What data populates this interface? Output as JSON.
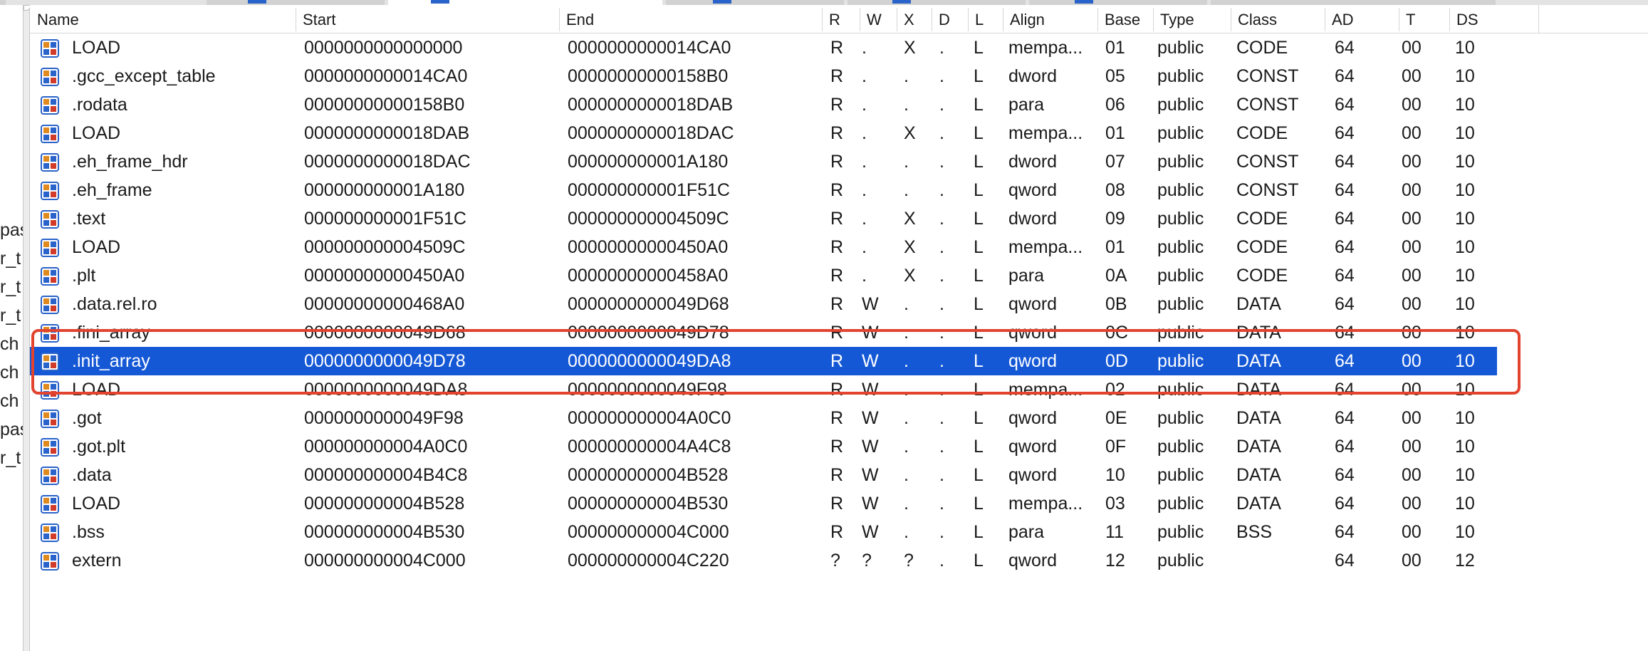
{
  "left_fragments": [
    "pas",
    "r_t",
    "r_t",
    "r_t",
    "ch",
    "ch",
    "ch",
    "pas",
    "r_t"
  ],
  "columns": [
    "Name",
    "Start",
    "End",
    "R",
    "W",
    "X",
    "D",
    "L",
    "Align",
    "Base",
    "Type",
    "Class",
    "AD",
    "T",
    "DS"
  ],
  "icon_name": "segment-icon",
  "colors": {
    "selection": "#1558d6",
    "annotation": "#e2432f",
    "icon_blue": "#2a63c9",
    "icon_orange": "#e08a1e",
    "icon_red": "#d23b2a"
  },
  "selected_row": 11,
  "annotated_rows": [
    10,
    11,
    12
  ],
  "segments": [
    {
      "name": "LOAD",
      "start": "0000000000000000",
      "end": "0000000000014CA0",
      "r": "R",
      "w": ".",
      "x": "X",
      "d": ".",
      "l": "L",
      "align": "mempa...",
      "base": "01",
      "type": "public",
      "class": "CODE",
      "ad": "64",
      "t": "00",
      "ds": "10"
    },
    {
      "name": ".gcc_except_table",
      "start": "0000000000014CA0",
      "end": "00000000000158B0",
      "r": "R",
      "w": ".",
      "x": ".",
      "d": ".",
      "l": "L",
      "align": "dword",
      "base": "05",
      "type": "public",
      "class": "CONST",
      "ad": "64",
      "t": "00",
      "ds": "10"
    },
    {
      "name": ".rodata",
      "start": "00000000000158B0",
      "end": "0000000000018DAB",
      "r": "R",
      "w": ".",
      "x": ".",
      "d": ".",
      "l": "L",
      "align": "para",
      "base": "06",
      "type": "public",
      "class": "CONST",
      "ad": "64",
      "t": "00",
      "ds": "10"
    },
    {
      "name": "LOAD",
      "start": "0000000000018DAB",
      "end": "0000000000018DAC",
      "r": "R",
      "w": ".",
      "x": "X",
      "d": ".",
      "l": "L",
      "align": "mempa...",
      "base": "01",
      "type": "public",
      "class": "CODE",
      "ad": "64",
      "t": "00",
      "ds": "10"
    },
    {
      "name": ".eh_frame_hdr",
      "start": "0000000000018DAC",
      "end": "000000000001A180",
      "r": "R",
      "w": ".",
      "x": ".",
      "d": ".",
      "l": "L",
      "align": "dword",
      "base": "07",
      "type": "public",
      "class": "CONST",
      "ad": "64",
      "t": "00",
      "ds": "10"
    },
    {
      "name": ".eh_frame",
      "start": "000000000001A180",
      "end": "000000000001F51C",
      "r": "R",
      "w": ".",
      "x": ".",
      "d": ".",
      "l": "L",
      "align": "qword",
      "base": "08",
      "type": "public",
      "class": "CONST",
      "ad": "64",
      "t": "00",
      "ds": "10"
    },
    {
      "name": ".text",
      "start": "000000000001F51C",
      "end": "000000000004509C",
      "r": "R",
      "w": ".",
      "x": "X",
      "d": ".",
      "l": "L",
      "align": "dword",
      "base": "09",
      "type": "public",
      "class": "CODE",
      "ad": "64",
      "t": "00",
      "ds": "10"
    },
    {
      "name": "LOAD",
      "start": "000000000004509C",
      "end": "00000000000450A0",
      "r": "R",
      "w": ".",
      "x": "X",
      "d": ".",
      "l": "L",
      "align": "mempa...",
      "base": "01",
      "type": "public",
      "class": "CODE",
      "ad": "64",
      "t": "00",
      "ds": "10"
    },
    {
      "name": ".plt",
      "start": "00000000000450A0",
      "end": "00000000000458A0",
      "r": "R",
      "w": ".",
      "x": "X",
      "d": ".",
      "l": "L",
      "align": "para",
      "base": "0A",
      "type": "public",
      "class": "CODE",
      "ad": "64",
      "t": "00",
      "ds": "10"
    },
    {
      "name": ".data.rel.ro",
      "start": "00000000000468A0",
      "end": "0000000000049D68",
      "r": "R",
      "w": "W",
      "x": ".",
      "d": ".",
      "l": "L",
      "align": "qword",
      "base": "0B",
      "type": "public",
      "class": "DATA",
      "ad": "64",
      "t": "00",
      "ds": "10"
    },
    {
      "name": ".fini_array",
      "start": "0000000000049D68",
      "end": "0000000000049D78",
      "r": "R",
      "w": "W",
      "x": ".",
      "d": ".",
      "l": "L",
      "align": "qword",
      "base": "0C",
      "type": "public",
      "class": "DATA",
      "ad": "64",
      "t": "00",
      "ds": "10"
    },
    {
      "name": ".init_array",
      "start": "0000000000049D78",
      "end": "0000000000049DA8",
      "r": "R",
      "w": "W",
      "x": ".",
      "d": ".",
      "l": "L",
      "align": "qword",
      "base": "0D",
      "type": "public",
      "class": "DATA",
      "ad": "64",
      "t": "00",
      "ds": "10"
    },
    {
      "name": "LOAD",
      "start": "0000000000049DA8",
      "end": "0000000000049F98",
      "r": "R",
      "w": "W",
      "x": ".",
      "d": ".",
      "l": "L",
      "align": "mempa...",
      "base": "02",
      "type": "public",
      "class": "DATA",
      "ad": "64",
      "t": "00",
      "ds": "10"
    },
    {
      "name": ".got",
      "start": "0000000000049F98",
      "end": "000000000004A0C0",
      "r": "R",
      "w": "W",
      "x": ".",
      "d": ".",
      "l": "L",
      "align": "qword",
      "base": "0E",
      "type": "public",
      "class": "DATA",
      "ad": "64",
      "t": "00",
      "ds": "10"
    },
    {
      "name": ".got.plt",
      "start": "000000000004A0C0",
      "end": "000000000004A4C8",
      "r": "R",
      "w": "W",
      "x": ".",
      "d": ".",
      "l": "L",
      "align": "qword",
      "base": "0F",
      "type": "public",
      "class": "DATA",
      "ad": "64",
      "t": "00",
      "ds": "10"
    },
    {
      "name": ".data",
      "start": "000000000004B4C8",
      "end": "000000000004B528",
      "r": "R",
      "w": "W",
      "x": ".",
      "d": ".",
      "l": "L",
      "align": "qword",
      "base": "10",
      "type": "public",
      "class": "DATA",
      "ad": "64",
      "t": "00",
      "ds": "10"
    },
    {
      "name": "LOAD",
      "start": "000000000004B528",
      "end": "000000000004B530",
      "r": "R",
      "w": "W",
      "x": ".",
      "d": ".",
      "l": "L",
      "align": "mempa...",
      "base": "03",
      "type": "public",
      "class": "DATA",
      "ad": "64",
      "t": "00",
      "ds": "10"
    },
    {
      "name": ".bss",
      "start": "000000000004B530",
      "end": "000000000004C000",
      "r": "R",
      "w": "W",
      "x": ".",
      "d": ".",
      "l": "L",
      "align": "para",
      "base": "11",
      "type": "public",
      "class": "BSS",
      "ad": "64",
      "t": "00",
      "ds": "10"
    },
    {
      "name": "extern",
      "start": "000000000004C000",
      "end": "000000000004C220",
      "r": "?",
      "w": "?",
      "x": "?",
      "d": ".",
      "l": "L",
      "align": "qword",
      "base": "12",
      "type": "public",
      "class": "",
      "ad": "64",
      "t": "00",
      "ds": "12"
    }
  ]
}
